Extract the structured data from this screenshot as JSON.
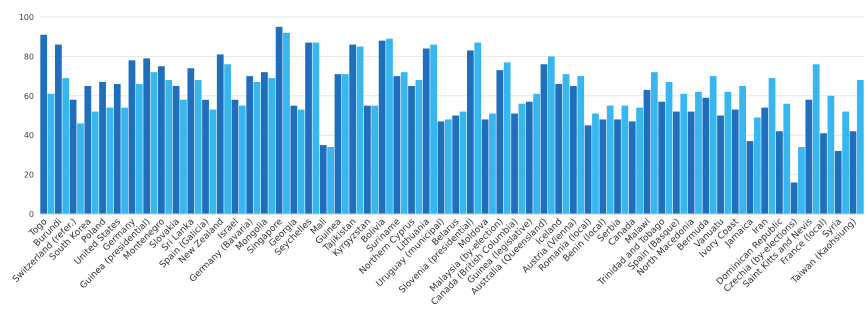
{
  "chart_data": {
    "type": "bar",
    "ylim": [
      0,
      100
    ],
    "yticks": [
      0,
      20,
      40,
      60,
      80,
      100
    ],
    "grid": true,
    "legend": "none",
    "colors": [
      "#1f6fbd",
      "#38b6ef"
    ],
    "tick_labels": [
      "Togo",
      "Burundi",
      "Switzerland (refer.)",
      "South Korea",
      "Poland",
      "United States",
      "Germany",
      "Guinea (presidential)",
      "Montenegro",
      "Slovakia",
      "Sri Lanka",
      "Spain (Galicia)",
      "New Zealand",
      "Israel",
      "Germany (Bavaria)",
      "Mongolia",
      "Singapore",
      "Georgia",
      "Seychelles",
      "Mali",
      "Guinea",
      "Tajikistan",
      "Kyrgyzstan",
      "Bolivia",
      "Suriname",
      "Northern Cyprus",
      "Lithuania",
      "Uruguay (municipal)",
      "Belarus",
      "Slovenia (presidential)",
      "Moldova",
      "Malaysia (by-election)",
      "Canada (British Columbia)",
      "Guinea (legislative)",
      "Australia (Queensland)",
      "Iceland",
      "Austria (Vienna)",
      "Romania (local)",
      "Benin (local)",
      "Serbia",
      "Canada",
      "Malawi",
      "Trinidad and Tobago",
      "Spain (Basque)",
      "North Macedonia",
      "Bermuda",
      "Vanuatu",
      "Ivory Coast",
      "Jamaica",
      "Iran",
      "Dominican Republic",
      "Czechia (by-elections)",
      "Saint Kitts and Nevis",
      "France (local)",
      "Syria",
      "Taiwan (Kaohsiung)"
    ],
    "values": [
      91,
      61,
      86,
      69,
      58,
      46,
      65,
      52,
      67,
      54,
      66,
      54,
      78,
      66,
      79,
      72,
      75,
      68,
      65,
      58,
      74,
      68,
      58,
      53,
      81,
      76,
      58,
      55,
      70,
      67,
      72,
      69,
      95,
      92,
      55,
      53,
      87,
      87,
      35,
      34,
      71,
      71,
      86,
      85,
      55,
      55,
      88,
      89,
      70,
      72,
      65,
      68,
      84,
      86,
      47,
      48,
      50,
      52,
      83,
      87,
      48,
      51,
      73,
      77,
      51,
      56,
      57,
      61,
      76,
      80,
      66,
      71,
      65,
      70,
      45,
      51,
      48,
      55,
      48,
      55,
      47,
      54,
      63,
      72,
      57,
      67,
      52,
      61,
      52,
      62,
      59,
      70,
      50,
      62,
      53,
      65,
      37,
      49,
      54,
      69,
      42,
      56,
      16,
      34,
      58,
      76,
      41,
      60,
      32,
      52,
      42,
      68
    ]
  }
}
